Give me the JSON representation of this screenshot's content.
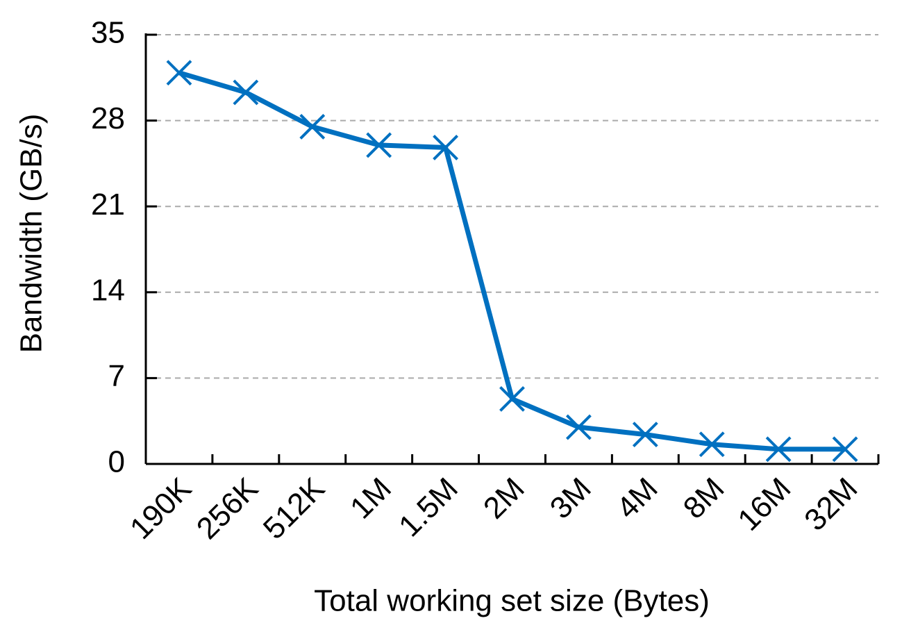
{
  "chart_data": {
    "type": "line",
    "x_label": "Total working set size (Bytes)",
    "y_label": "Bandwidth (GB/s)",
    "categories": [
      "190K",
      "256K",
      "512K",
      "1M",
      "1.5M",
      "2M",
      "3M",
      "4M",
      "8M",
      "16M",
      "32M"
    ],
    "values": [
      31.9,
      30.3,
      27.5,
      26.0,
      25.8,
      5.3,
      3.0,
      2.4,
      1.6,
      1.2,
      1.2
    ],
    "color": "#0070c0",
    "marker": "x",
    "ylim": [
      0,
      35
    ],
    "yticks": [
      0,
      7,
      14,
      21,
      28,
      35
    ],
    "grid": true
  }
}
